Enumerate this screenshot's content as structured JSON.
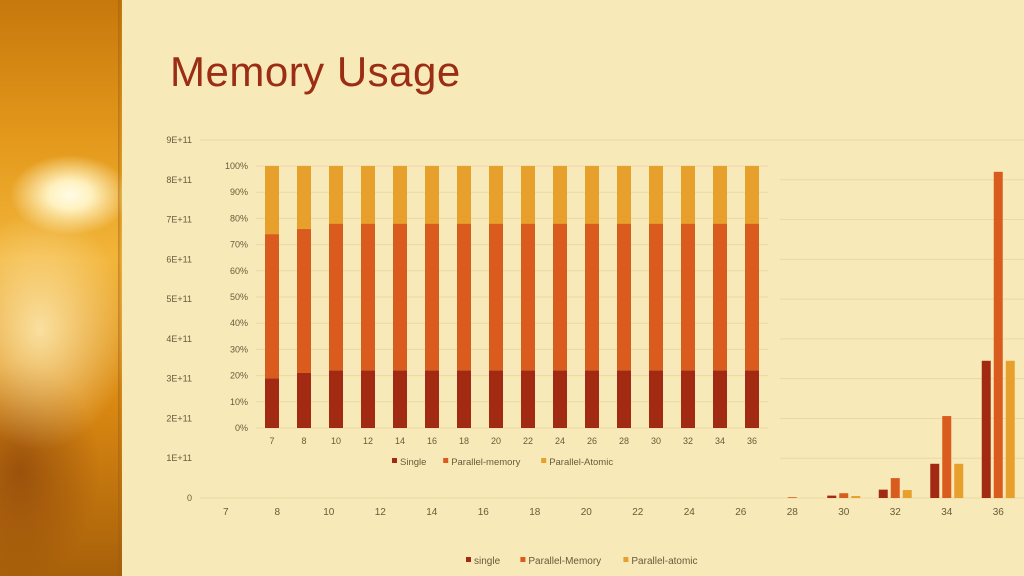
{
  "slide": {
    "title": "Memory Usage"
  },
  "chart_data": [
    {
      "type": "bar",
      "categories": [
        "7",
        "8",
        "10",
        "12",
        "14",
        "16",
        "18",
        "20",
        "22",
        "24",
        "26",
        "28",
        "30",
        "32",
        "34",
        "36"
      ],
      "series": [
        {
          "name": "single",
          "color": "#a32a12",
          "values": [
            0,
            0,
            0,
            0,
            0,
            0,
            0,
            0,
            0,
            0,
            0,
            0,
            6000000000,
            21000000000,
            86000000000,
            345000000000
          ]
        },
        {
          "name": "Parallel-Memory",
          "color": "#d95b1e",
          "values": [
            0,
            0,
            0,
            0,
            0,
            0,
            0,
            0,
            0,
            0,
            0,
            2000000000,
            12000000000,
            50000000000,
            206000000000,
            820000000000
          ]
        },
        {
          "name": "Parallel-atomic",
          "color": "#e8a02c",
          "values": [
            0,
            0,
            0,
            0,
            0,
            0,
            0,
            0,
            0,
            0,
            0,
            0,
            5000000000,
            20000000000,
            86000000000,
            345000000000
          ]
        }
      ],
      "ylim": [
        0,
        900000000000
      ],
      "yticks": [
        "0",
        "1E+11",
        "2E+11",
        "3E+11",
        "4E+11",
        "5E+11",
        "6E+11",
        "7E+11",
        "8E+11",
        "9E+11"
      ],
      "grid": true,
      "legend": "bottom"
    },
    {
      "type": "bar",
      "stacked_percent": true,
      "categories": [
        "7",
        "8",
        "10",
        "12",
        "14",
        "16",
        "18",
        "20",
        "22",
        "24",
        "26",
        "28",
        "30",
        "32",
        "34",
        "36"
      ],
      "series": [
        {
          "name": "Single",
          "color": "#a32a12",
          "values": [
            19,
            21,
            22,
            22,
            22,
            22,
            22,
            22,
            22,
            22,
            22,
            22,
            22,
            22,
            22,
            22
          ]
        },
        {
          "name": "Parallel-memory",
          "color": "#d95b1e",
          "values": [
            55,
            55,
            56,
            56,
            56,
            56,
            56,
            56,
            56,
            56,
            56,
            56,
            56,
            56,
            56,
            56
          ]
        },
        {
          "name": "Parallel-Atomic",
          "color": "#e8a02c",
          "values": [
            26,
            24,
            22,
            22,
            22,
            22,
            22,
            22,
            22,
            22,
            22,
            22,
            22,
            22,
            22,
            22
          ]
        }
      ],
      "ylim": [
        0,
        100
      ],
      "yticks": [
        "0%",
        "10%",
        "20%",
        "30%",
        "40%",
        "50%",
        "60%",
        "70%",
        "80%",
        "90%",
        "100%"
      ],
      "grid": true,
      "legend": "bottom"
    }
  ]
}
